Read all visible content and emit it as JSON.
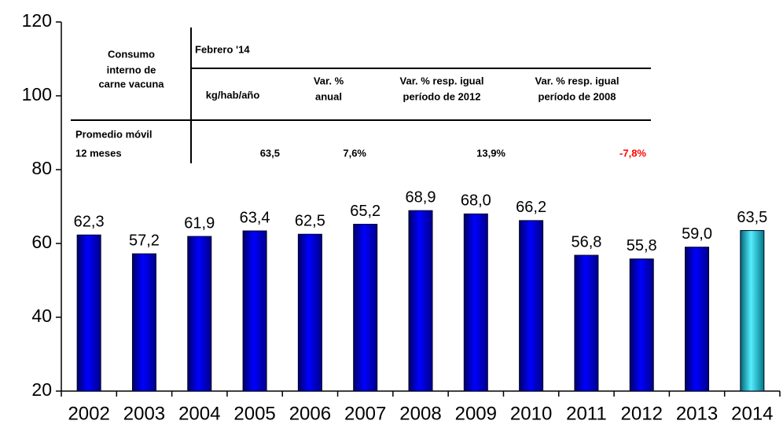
{
  "chart_data": {
    "type": "bar",
    "categories": [
      "2002",
      "2003",
      "2004",
      "2005",
      "2006",
      "2007",
      "2008",
      "2009",
      "2010",
      "2011",
      "2012",
      "2013",
      "2014"
    ],
    "values": [
      62.3,
      57.2,
      61.9,
      63.4,
      62.5,
      65.2,
      68.9,
      68.0,
      66.2,
      56.8,
      55.8,
      59.0,
      63.5
    ],
    "value_labels": [
      "62,3",
      "57,2",
      "61,9",
      "63,4",
      "62,5",
      "65,2",
      "68,9",
      "68,0",
      "66,2",
      "56,8",
      "55,8",
      "59,0",
      "63,5"
    ],
    "colors": [
      "#0000dd",
      "#0000dd",
      "#0000dd",
      "#0000dd",
      "#0000dd",
      "#0000dd",
      "#0000dd",
      "#0000dd",
      "#0000dd",
      "#0000dd",
      "#0000dd",
      "#0000dd",
      "#33ccdd"
    ],
    "ylim": [
      20,
      120
    ],
    "yticks": [
      20,
      40,
      60,
      80,
      100,
      120
    ]
  },
  "table": {
    "row_header": [
      "Consumo",
      "interno de",
      "carne vacuna"
    ],
    "period": "Febrero '14",
    "columns": [
      [
        "kg/hab/año"
      ],
      [
        "Var. %",
        "anual"
      ],
      [
        "Var. % resp. igual",
        "período de 2012"
      ],
      [
        "Var. % resp. igual",
        "período de 2008"
      ]
    ],
    "row_label": [
      "Promedio móvil",
      "12 meses"
    ],
    "row_values": [
      "63,5",
      "7,6%",
      "13,9%",
      "-7,8%"
    ]
  }
}
